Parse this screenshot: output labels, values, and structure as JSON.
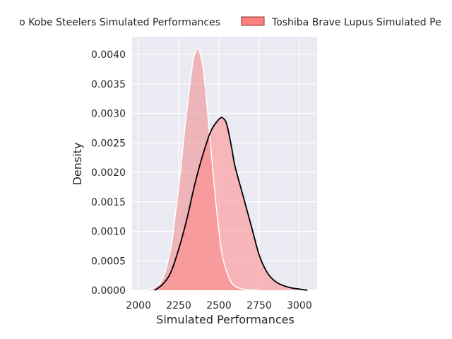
{
  "chart_data": {
    "type": "area",
    "title": "",
    "xlabel": "Simulated Performances",
    "ylabel": "Density",
    "xlim": [
      1960,
      3110
    ],
    "ylim": [
      0,
      0.0043
    ],
    "x_ticks": [
      2000,
      2250,
      2500,
      2750,
      3000
    ],
    "x_tick_labels": [
      "2000",
      "2250",
      "2500",
      "2750",
      "3000"
    ],
    "y_ticks": [
      0,
      0.0005,
      0.001,
      0.0015,
      0.002,
      0.0025,
      0.003,
      0.0035,
      0.004
    ],
    "y_tick_labels": [
      "0.0000",
      "0.0005",
      "0.0010",
      "0.0015",
      "0.0020",
      "0.0025",
      "0.0030",
      "0.0035",
      "0.0040"
    ],
    "grid": true,
    "legend_position": "top",
    "series": [
      {
        "name": "Kubota Spears Funabashi Tokyo Kobe Steelers Simulated Performances",
        "visible_legend_text": "o Kobe Steelers Simulated Performances",
        "fill": "#f08080",
        "edge": "#ffffff",
        "points": [
          [
            2000,
            0
          ],
          [
            2050,
            1e-05
          ],
          [
            2100,
            5e-05
          ],
          [
            2150,
            0.0002
          ],
          [
            2200,
            0.0007
          ],
          [
            2230,
            0.0013
          ],
          [
            2260,
            0.002
          ],
          [
            2290,
            0.0028
          ],
          [
            2320,
            0.0035
          ],
          [
            2340,
            0.0039
          ],
          [
            2355,
            0.00405
          ],
          [
            2368,
            0.0041
          ],
          [
            2380,
            0.00405
          ],
          [
            2400,
            0.0038
          ],
          [
            2420,
            0.0033
          ],
          [
            2440,
            0.0027
          ],
          [
            2460,
            0.0021
          ],
          [
            2480,
            0.0015
          ],
          [
            2500,
            0.001
          ],
          [
            2520,
            0.0006
          ],
          [
            2550,
            0.0003
          ],
          [
            2580,
            0.00012
          ],
          [
            2620,
            4e-05
          ],
          [
            2680,
            1e-05
          ],
          [
            2750,
            0
          ]
        ]
      },
      {
        "name": "Toshiba Brave Lupus Simulated Performances",
        "visible_legend_text": "Toshiba Brave Lupus Simulated Pe",
        "fill": "#ff8080",
        "edge": "#000000",
        "points": [
          [
            2100,
            0
          ],
          [
            2150,
            0.0001
          ],
          [
            2200,
            0.0003
          ],
          [
            2250,
            0.0007
          ],
          [
            2300,
            0.0012
          ],
          [
            2350,
            0.0018
          ],
          [
            2400,
            0.0023
          ],
          [
            2450,
            0.0027
          ],
          [
            2500,
            0.0029
          ],
          [
            2525,
            0.00292
          ],
          [
            2550,
            0.0028
          ],
          [
            2580,
            0.0024
          ],
          [
            2600,
            0.0021
          ],
          [
            2650,
            0.0016
          ],
          [
            2700,
            0.0011
          ],
          [
            2750,
            0.0006
          ],
          [
            2800,
            0.0003
          ],
          [
            2850,
            0.00015
          ],
          [
            2900,
            8e-05
          ],
          [
            2950,
            4e-05
          ],
          [
            3000,
            2e-05
          ],
          [
            3050,
            0
          ]
        ]
      }
    ]
  }
}
